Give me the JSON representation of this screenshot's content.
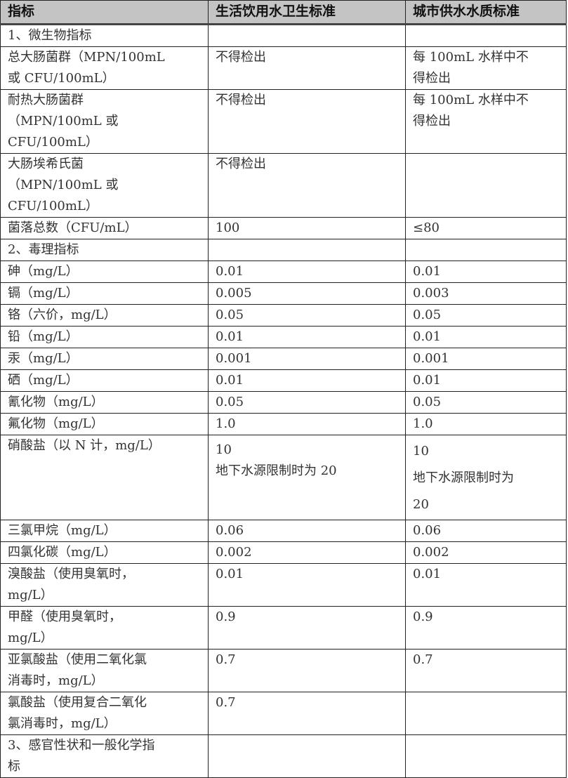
{
  "headers": [
    "指标",
    "生活饮用水卫生标准",
    "城市供水水质标准"
  ],
  "rows": [
    {
      "c0": [
        "1、微生物指标"
      ],
      "c1": [],
      "c2": [],
      "h": 30
    },
    {
      "c0": [
        "总大肠菌群（MPN/100mL",
        "或 CFU/100mL）"
      ],
      "c1": [
        "不得检出"
      ],
      "c2": [
        "每 100mL 水样中不",
        "得检出"
      ],
      "h": 60
    },
    {
      "c0": [
        "耐热大肠菌群",
        "（MPN/100mL 或",
        "CFU/100mL）"
      ],
      "c1": [
        "不得检出"
      ],
      "c2": [
        "每 100mL 水样中不",
        "得检出"
      ],
      "h": 90
    },
    {
      "c0": [
        "大肠埃希氏菌",
        "（MPN/100mL 或",
        "CFU/100mL）"
      ],
      "c1": [
        "不得检出"
      ],
      "c2": [],
      "h": 90
    },
    {
      "c0": [
        "菌落总数（CFU/mL）"
      ],
      "c1": [
        "100"
      ],
      "c2": [
        "≤80"
      ],
      "h": 30
    },
    {
      "c0": [
        "2、毒理指标"
      ],
      "c1": [],
      "c2": [],
      "h": 30
    },
    {
      "c0": [
        "砷（mg/L）"
      ],
      "c1": [
        "0.01"
      ],
      "c2": [
        "0.01"
      ],
      "h": 30
    },
    {
      "c0": [
        "镉（mg/L）"
      ],
      "c1": [
        "0.005"
      ],
      "c2": [
        "0.003"
      ],
      "h": 30
    },
    {
      "c0": [
        "铬（六价，mg/L）"
      ],
      "c1": [
        "0.05"
      ],
      "c2": [
        "0.05"
      ],
      "h": 30
    },
    {
      "c0": [
        "铅（mg/L）"
      ],
      "c1": [
        "0.01"
      ],
      "c2": [
        "0.01"
      ],
      "h": 30
    },
    {
      "c0": [
        "汞（mg/L）"
      ],
      "c1": [
        "0.001"
      ],
      "c2": [
        "0.001"
      ],
      "h": 30
    },
    {
      "c0": [
        "硒（mg/L）"
      ],
      "c1": [
        "0.01"
      ],
      "c2": [
        "0.01"
      ],
      "h": 30
    },
    {
      "c0": [
        "氰化物（mg/L）"
      ],
      "c1": [
        "0.05"
      ],
      "c2": [
        "0.05"
      ],
      "h": 30
    },
    {
      "c0": [
        "氟化物（mg/L）"
      ],
      "c1": [
        "1.0"
      ],
      "c2": [
        "1.0"
      ],
      "h": 30
    },
    {
      "c0": [
        "硝酸盐（以 N 计，mg/L）"
      ],
      "c1": [
        "10",
        "地下水源限制时为 20"
      ],
      "c2": [
        "10",
        "地下水源限制时为",
        "20"
      ],
      "h": 115,
      "special": true
    },
    {
      "c0": [
        "三氯甲烷（mg/L）"
      ],
      "c1": [
        "0.06"
      ],
      "c2": [
        "0.06"
      ],
      "h": 30
    },
    {
      "c0": [
        "四氯化碳（mg/L）"
      ],
      "c1": [
        "0.002"
      ],
      "c2": [
        "0.002"
      ],
      "h": 30
    },
    {
      "c0": [
        "溴酸盐（使用臭氧时，",
        "mg/L）"
      ],
      "c1": [
        "0.01"
      ],
      "c2": [
        "0.01"
      ],
      "h": 60
    },
    {
      "c0": [
        "甲醛（使用臭氧时，",
        "mg/L）"
      ],
      "c1": [
        "0.9"
      ],
      "c2": [
        "0.9"
      ],
      "h": 60
    },
    {
      "c0": [
        "亚氯酸盐（使用二氧化氯",
        "消毒时，mg/L）"
      ],
      "c1": [
        "0.7"
      ],
      "c2": [
        "0.7"
      ],
      "h": 60
    },
    {
      "c0": [
        "氯酸盐（使用复合二氧化",
        "氯消毒时，mg/L）"
      ],
      "c1": [
        "0.7"
      ],
      "c2": [],
      "h": 60
    },
    {
      "c0": [
        "3、感官性状和一般化学指",
        "标"
      ],
      "c1": [],
      "c2": [],
      "h": 60
    }
  ]
}
